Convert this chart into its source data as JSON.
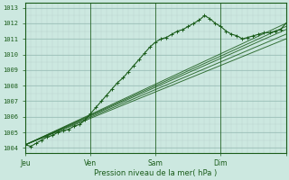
{
  "bg_color": "#cce8e0",
  "plot_bg_color": "#cce8e0",
  "line_color": "#1a5c1a",
  "ylabel_values": [
    1004,
    1005,
    1006,
    1007,
    1008,
    1009,
    1010,
    1011,
    1012,
    1013
  ],
  "ylim": [
    1003.7,
    1013.3
  ],
  "xlim": [
    0,
    96
  ],
  "xlabel": "Pression niveau de la mer( hPa )",
  "xtick_positions": [
    0,
    24,
    48,
    72,
    96
  ],
  "xtick_labels": [
    "Jeu",
    "Ven",
    "Sam",
    "Dim",
    ""
  ],
  "vline_positions": [
    24,
    48,
    72,
    96
  ],
  "main_line_x": [
    0,
    2,
    4,
    6,
    8,
    10,
    12,
    14,
    16,
    18,
    20,
    22,
    24,
    26,
    28,
    30,
    32,
    34,
    36,
    38,
    40,
    42,
    44,
    46,
    48,
    50,
    52,
    54,
    56,
    58,
    60,
    62,
    64,
    66,
    68,
    70,
    72,
    74,
    76,
    78,
    80,
    82,
    84,
    86,
    88,
    90,
    92,
    94,
    96
  ],
  "main_line_y": [
    1004.2,
    1004.1,
    1004.3,
    1004.5,
    1004.7,
    1004.8,
    1005.0,
    1005.1,
    1005.2,
    1005.4,
    1005.5,
    1005.8,
    1006.2,
    1006.6,
    1007.0,
    1007.4,
    1007.8,
    1008.2,
    1008.5,
    1008.9,
    1009.3,
    1009.7,
    1010.1,
    1010.5,
    1010.8,
    1011.0,
    1011.1,
    1011.3,
    1011.5,
    1011.6,
    1011.8,
    1012.0,
    1012.2,
    1012.5,
    1012.3,
    1012.0,
    1011.8,
    1011.5,
    1011.3,
    1011.2,
    1011.0,
    1011.1,
    1011.2,
    1011.3,
    1011.4,
    1011.4,
    1011.5,
    1011.6,
    1012.0
  ],
  "fan_lines": [
    {
      "x": [
        0,
        96
      ],
      "y": [
        1004.2,
        1011.0
      ]
    },
    {
      "x": [
        0,
        96
      ],
      "y": [
        1004.2,
        1011.3
      ]
    },
    {
      "x": [
        0,
        96
      ],
      "y": [
        1004.2,
        1011.6
      ]
    },
    {
      "x": [
        0,
        96
      ],
      "y": [
        1004.2,
        1011.8
      ]
    },
    {
      "x": [
        0,
        96
      ],
      "y": [
        1004.2,
        1012.0
      ]
    }
  ],
  "minor_ytick_interval": 0.2,
  "minor_xtick_interval": 2,
  "grid_minor_color": "#b8d8d0",
  "grid_major_color": "#a8c8c0"
}
